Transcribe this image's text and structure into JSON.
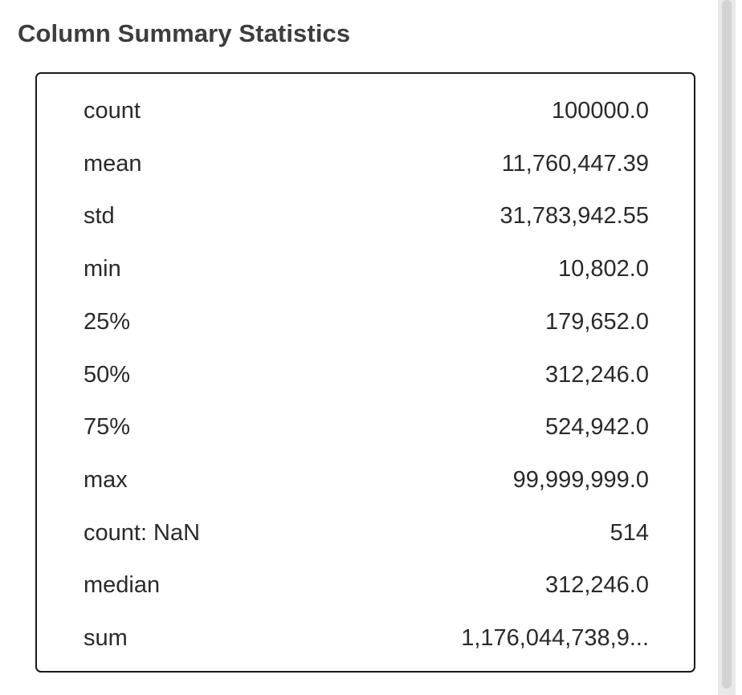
{
  "panel": {
    "title": "Column Summary Statistics"
  },
  "stats": [
    {
      "label": "count",
      "value": "100000.0"
    },
    {
      "label": "mean",
      "value": "11,760,447.39"
    },
    {
      "label": "std",
      "value": "31,783,942.55"
    },
    {
      "label": "min",
      "value": "10,802.0"
    },
    {
      "label": "25%",
      "value": "179,652.0"
    },
    {
      "label": "50%",
      "value": "312,246.0"
    },
    {
      "label": "75%",
      "value": "524,942.0"
    },
    {
      "label": "max",
      "value": "99,999,999.0"
    },
    {
      "label": "count: NaN",
      "value": "514"
    },
    {
      "label": "median",
      "value": "312,246.0"
    },
    {
      "label": "sum",
      "value": "1,176,044,738,9..."
    }
  ],
  "colors": {
    "title": "#3d3d3d",
    "text": "#2a2a2a",
    "border": "#1a1a1a",
    "scrollbar_track": "#e8e8e8",
    "scrollbar_thumb": "#d3d3d3"
  }
}
